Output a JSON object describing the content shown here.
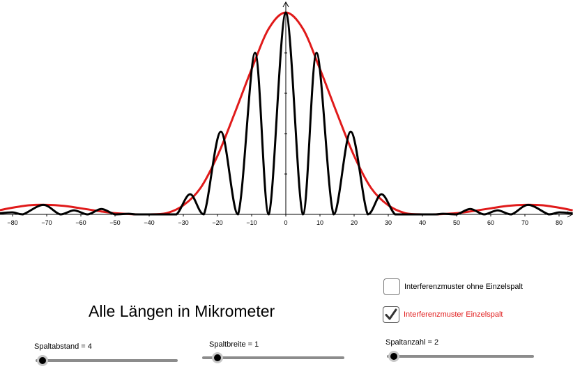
{
  "heading": "Alle Längen in Mikrometer",
  "checkboxes": {
    "without_single_slit": {
      "label": "Interferenzmuster ohne Einzelspalt",
      "checked": false
    },
    "with_single_slit": {
      "label": "Interferenzmuster Einzelspalt",
      "checked": true
    }
  },
  "sliders": {
    "spaltabstand": {
      "label": "Spaltabstand = 4",
      "value": 4
    },
    "spaltbreite": {
      "label": "Spaltbreite = 1",
      "value": 1
    },
    "spaltanzahl": {
      "label": "Spaltanzahl = 2",
      "value": 2
    }
  },
  "colors": {
    "envelope": "#e01a1a",
    "pattern": "#000000",
    "axis": "#000000",
    "red_label": "#e01a1a"
  },
  "chart_data": {
    "type": "line",
    "x_range": [
      -84,
      84
    ],
    "y_range": [
      0,
      1
    ],
    "x_ticks": [
      -80,
      -70,
      -60,
      -50,
      -40,
      -30,
      -20,
      -10,
      0,
      10,
      20,
      30,
      40,
      50,
      60,
      70,
      80
    ],
    "x_tick_labels": [
      "−80",
      "−70",
      "−60",
      "−50",
      "−40",
      "−30",
      "−20",
      "−10",
      "0",
      "10",
      "20",
      "30",
      "40",
      "50",
      "60",
      "70",
      "80"
    ],
    "y_tick_labels_shown": false,
    "grid": false,
    "series": [
      {
        "color": "#e01a1a",
        "x": [
          -84,
          -80,
          -75,
          -70,
          -65,
          -60,
          -55,
          -50,
          -45,
          -40,
          -35,
          -30,
          -25,
          -20,
          -15,
          -10,
          -5,
          0,
          5,
          10,
          15,
          20,
          25,
          30,
          35,
          40,
          45,
          50,
          55,
          60,
          65,
          70,
          75,
          80,
          84
        ],
        "y": [
          0.02,
          0.033,
          0.045,
          0.047,
          0.042,
          0.03,
          0.017,
          0.006,
          0.001,
          0.0,
          0.006,
          0.045,
          0.13,
          0.29,
          0.5,
          0.72,
          0.92,
          1.0,
          0.92,
          0.72,
          0.5,
          0.29,
          0.13,
          0.045,
          0.006,
          0.0,
          0.001,
          0.006,
          0.017,
          0.03,
          0.042,
          0.047,
          0.045,
          0.033,
          0.02
        ]
      },
      {
        "color": "#000000",
        "x": [
          -84,
          -80,
          -77,
          -71,
          -66,
          -62,
          -58,
          -54,
          -50,
          -46,
          -44,
          -40,
          -36,
          -32,
          -28,
          -24,
          -19,
          -14,
          -9,
          -5,
          0,
          5,
          9,
          14,
          19,
          24,
          28,
          32,
          36,
          40,
          44,
          46,
          50,
          54,
          58,
          62,
          66,
          71,
          77,
          80,
          84
        ],
        "y": [
          0.005,
          0.01,
          0.0,
          0.047,
          0.0,
          0.02,
          0.0,
          0.027,
          0.0,
          0.003,
          0.0,
          0.0,
          0.0,
          0.0,
          0.1,
          0.0,
          0.41,
          0.0,
          0.8,
          0.0,
          1.0,
          0.0,
          0.8,
          0.0,
          0.41,
          0.0,
          0.1,
          0.0,
          0.0,
          0.0,
          0.0,
          0.003,
          0.0,
          0.027,
          0.0,
          0.02,
          0.0,
          0.047,
          0.0,
          0.01,
          0.005
        ]
      }
    ]
  }
}
